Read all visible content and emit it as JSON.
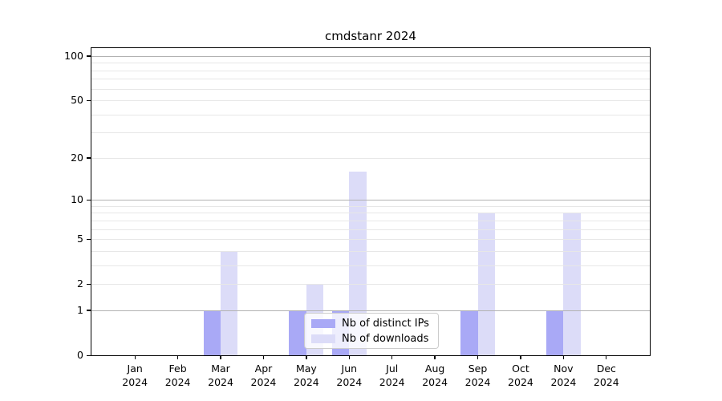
{
  "title": "cmdstanr 2024",
  "colors": {
    "distinct_ips": "#a9a9f6",
    "downloads": "#dcdcf8",
    "major_grid": "#b2b2b2",
    "minor_grid": "#e7e7e7",
    "axis": "#000000",
    "legend_border": "#cccccc",
    "background": "#ffffff"
  },
  "legend": {
    "items": [
      {
        "label": "Nb of distinct IPs",
        "color_key": "distinct_ips"
      },
      {
        "label": "Nb of downloads",
        "color_key": "downloads"
      }
    ]
  },
  "chart_data": {
    "type": "bar",
    "title": "cmdstanr 2024",
    "xlabel": "",
    "ylabel": "",
    "x_tick_labels": [
      {
        "month": "Jan",
        "year": "2024"
      },
      {
        "month": "Feb",
        "year": "2024"
      },
      {
        "month": "Mar",
        "year": "2024"
      },
      {
        "month": "Apr",
        "year": "2024"
      },
      {
        "month": "May",
        "year": "2024"
      },
      {
        "month": "Jun",
        "year": "2024"
      },
      {
        "month": "Jul",
        "year": "2024"
      },
      {
        "month": "Aug",
        "year": "2024"
      },
      {
        "month": "Sep",
        "year": "2024"
      },
      {
        "month": "Oct",
        "year": "2024"
      },
      {
        "month": "Nov",
        "year": "2024"
      },
      {
        "month": "Dec",
        "year": "2024"
      }
    ],
    "series": [
      {
        "name": "Nb of distinct IPs",
        "color_key": "distinct_ips",
        "values": [
          0,
          0,
          1,
          0,
          1,
          1,
          0,
          0,
          1,
          0,
          1,
          0
        ]
      },
      {
        "name": "Nb of downloads",
        "color_key": "downloads",
        "values": [
          0,
          0,
          4,
          0,
          2,
          16,
          0,
          0,
          8,
          0,
          8,
          0
        ]
      }
    ],
    "yscale": "log1p",
    "y_ticks": [
      0,
      1,
      2,
      5,
      10,
      20,
      50,
      100
    ],
    "ylim": [
      0,
      113
    ],
    "grid": {
      "on": true,
      "major": [
        1,
        10,
        100
      ],
      "minor": [
        2,
        3,
        4,
        5,
        6,
        7,
        8,
        9,
        20,
        30,
        40,
        50,
        60,
        70,
        80,
        90
      ]
    },
    "legend_position": "lower center"
  }
}
